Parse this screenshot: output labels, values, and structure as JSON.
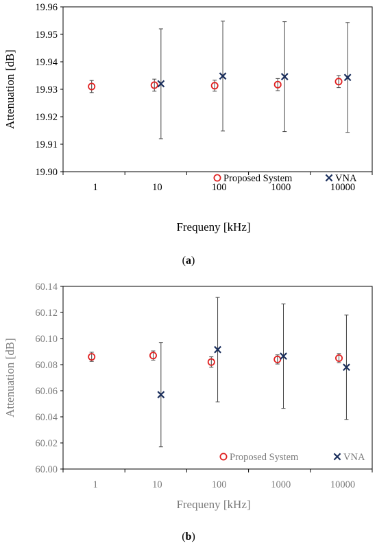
{
  "chart_data": [
    {
      "type": "scatter",
      "panel_label": "a",
      "xlabel": "Frequeny  [kHz]",
      "ylabel": "Attenuation [dB]",
      "x_scale": "log",
      "xlim": [
        0.3,
        30000
      ],
      "ylim": [
        19.9,
        19.96
      ],
      "x_ticks": [
        1,
        10,
        100,
        1000,
        10000
      ],
      "x_tick_labels": [
        "1",
        "10",
        "100",
        "1000",
        "10000"
      ],
      "y_ticks": [
        19.9,
        19.91,
        19.92,
        19.93,
        19.94,
        19.95,
        19.96
      ],
      "y_tick_labels": [
        "19.90",
        "19.91",
        "19.92",
        "19.93",
        "19.94",
        "19.95",
        "19.96"
      ],
      "grid": false,
      "legend_position": "bottom-right",
      "text_color": "#000000",
      "series": [
        {
          "name": "Proposed System",
          "marker": "circle",
          "color": "#e02020",
          "x": [
            0.87,
            9.0,
            85,
            890,
            8600
          ],
          "y": [
            19.931,
            19.9315,
            19.9313,
            19.9317,
            19.9328
          ],
          "err": [
            0.0022,
            0.0022,
            0.002,
            0.0022,
            0.0022
          ]
        },
        {
          "name": "VNA",
          "marker": "x",
          "color": "#1a2e5c",
          "x": [
            11.5,
            115,
            1150,
            12000
          ],
          "y": [
            19.932,
            19.9348,
            19.9346,
            19.9343
          ],
          "err": [
            0.02,
            0.02,
            0.02,
            0.02
          ]
        }
      ]
    },
    {
      "type": "scatter",
      "panel_label": "b",
      "xlabel": "Frequeny  [kHz]",
      "ylabel": "Attenuation [dB]",
      "x_scale": "log",
      "xlim": [
        0.3,
        30000
      ],
      "ylim": [
        60.0,
        60.14
      ],
      "x_ticks": [
        1,
        10,
        100,
        1000,
        10000
      ],
      "x_tick_labels": [
        "1",
        "10",
        "100",
        "1000",
        "10000"
      ],
      "y_ticks": [
        60.0,
        60.02,
        60.04,
        60.06,
        60.08,
        60.1,
        60.12,
        60.14
      ],
      "y_tick_labels": [
        "60.00",
        "60.02",
        "60.04",
        "60.06",
        "60.08",
        "60.10",
        "60.12",
        "60.14"
      ],
      "grid": false,
      "legend_position": "bottom-right",
      "text_color": "#7a7a7a",
      "series": [
        {
          "name": "Proposed System",
          "marker": "circle",
          "color": "#e02020",
          "x": [
            0.87,
            8.6,
            75,
            880,
            8700
          ],
          "y": [
            60.086,
            60.087,
            60.082,
            60.084,
            60.085
          ],
          "err": [
            0.0035,
            0.0035,
            0.004,
            0.0035,
            0.0035
          ]
        },
        {
          "name": "VNA",
          "marker": "x",
          "color": "#1a2e5c",
          "x": [
            11.5,
            95,
            1100,
            11500
          ],
          "y": [
            60.057,
            60.0915,
            60.0865,
            60.078
          ],
          "err": [
            0.04,
            0.04,
            0.04,
            0.04
          ]
        }
      ]
    }
  ]
}
